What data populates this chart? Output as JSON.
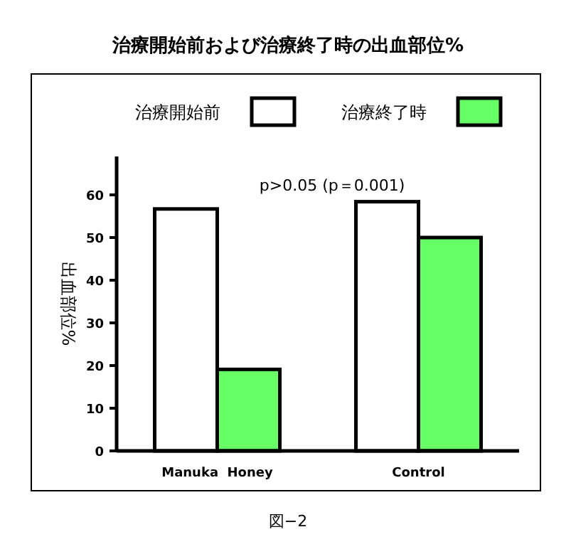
{
  "chart_data": {
    "type": "bar",
    "title": "治療開始前および治療終了時の出血部位%",
    "ylabel": "出血部位%",
    "annotations": [
      "p>0.05 (p＝0.001)",
      "図−2"
    ],
    "categories": [
      "Manuka  Honey",
      "Control"
    ],
    "series": [
      {
        "name": "治療開始前",
        "color": "#ffffff",
        "values": [
          56.7,
          58.4
        ]
      },
      {
        "name": "治療終了時",
        "color": "#66ff66",
        "values": [
          19.1,
          50
        ]
      }
    ],
    "ylim": [
      0,
      69
    ],
    "yticks": [
      0,
      10,
      20,
      30,
      40,
      50,
      60
    ],
    "grid": false,
    "legend": "top"
  }
}
